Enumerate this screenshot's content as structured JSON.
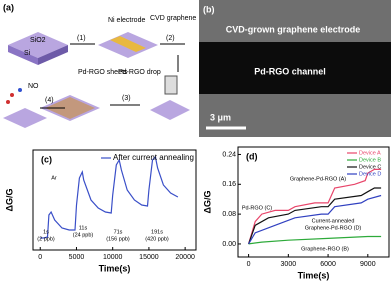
{
  "figure_a": {
    "label": "(a)",
    "substrate_top": "SiO2",
    "substrate_bottom": "Si",
    "step_1": "(1)",
    "ni": "Ni electrode",
    "step_2": "(2)",
    "cvd": "CVD graphene",
    "step_3": "(3)",
    "drop": "Pd-RGO drop",
    "step_4": "(4)",
    "sheets": "Pd-RGO sheets",
    "gas": "NO"
  },
  "figure_b": {
    "label": "(b)",
    "electrode": "CVD-grown graphene electrode",
    "channel": "Pd-RGO channel",
    "scale": "3 μm"
  },
  "chart_data": [
    {
      "type": "line",
      "label": "(c)",
      "y_label": "ΔG/G",
      "x_label": "Time(s)",
      "xlim": [
        -1000,
        21500
      ],
      "ylim": [
        0,
        1
      ],
      "xticks": [
        0,
        5000,
        10000,
        15000,
        20000
      ],
      "series": [
        {
          "name": "After current annealing",
          "color": "#3a4fc8",
          "x": [
            0,
            500,
            1000,
            1200,
            1500,
            2000,
            3000,
            4000,
            4800,
            5000,
            5400,
            5800,
            6000,
            7000,
            8000,
            9000,
            9800,
            10000,
            10500,
            10900,
            11200,
            12000,
            13000,
            14000,
            14800,
            15000,
            15500,
            15900,
            16200,
            17000,
            18000,
            19000
          ],
          "values": [
            0.12,
            0.12,
            0.13,
            0.35,
            0.38,
            0.3,
            0.22,
            0.2,
            0.2,
            0.45,
            0.72,
            0.78,
            0.7,
            0.5,
            0.42,
            0.38,
            0.37,
            0.55,
            0.85,
            0.9,
            0.8,
            0.6,
            0.5,
            0.45,
            0.44,
            0.6,
            0.9,
            0.93,
            0.82,
            0.65,
            0.57,
            0.53
          ]
        }
      ],
      "annotations": [
        [
          "Ar"
        ],
        [
          "1s",
          "(2 ppb)"
        ],
        [
          "11s",
          "(24 ppb)"
        ],
        [
          "71s",
          "(156 ppb)"
        ],
        [
          "191s",
          "(420 ppb)"
        ]
      ]
    },
    {
      "type": "line",
      "label": "(d)",
      "y_label": "ΔG/G",
      "x_label": "Time(s)",
      "xlim": [
        -800,
        10600
      ],
      "ylim": [
        -0.035,
        0.26
      ],
      "xticks": [
        0,
        3000,
        6000,
        9000
      ],
      "yticks": [
        {
          "value": 0,
          "label": "0.00"
        },
        {
          "value": 0.08,
          "label": "0.08"
        },
        {
          "value": 0.16,
          "label": "0.16"
        },
        {
          "value": 0.24,
          "label": "0.24"
        }
      ],
      "series": [
        {
          "name": "Device A",
          "color": "#e8456a",
          "x": [
            0,
            500,
            1000,
            2000,
            3000,
            3500,
            5000,
            6000,
            6500,
            8000,
            8800,
            9000,
            9500,
            10000
          ],
          "values": [
            0,
            0.06,
            0.08,
            0.09,
            0.09,
            0.1,
            0.11,
            0.11,
            0.15,
            0.16,
            0.17,
            0.19,
            0.2,
            0.2
          ]
        },
        {
          "name": "Device B",
          "color": "#2daa3a",
          "x": [
            0,
            1000,
            3000,
            6000,
            9000,
            10000
          ],
          "values": [
            0,
            0.005,
            0.01,
            0.015,
            0.02,
            0.02
          ]
        },
        {
          "name": "Device C",
          "color": "#111111",
          "x": [
            0,
            500,
            1500,
            3000,
            3500,
            5500,
            6000,
            6500,
            8500,
            9000,
            9500,
            10000
          ],
          "values": [
            0,
            0.05,
            0.07,
            0.08,
            0.09,
            0.1,
            0.1,
            0.12,
            0.13,
            0.14,
            0.15,
            0.15
          ]
        },
        {
          "name": "Device D",
          "color": "#3040c0",
          "x": [
            0,
            500,
            2000,
            3500,
            5500,
            6000,
            6500,
            8500,
            9000,
            10000
          ],
          "values": [
            0,
            0.03,
            0.05,
            0.07,
            0.08,
            0.08,
            0.1,
            0.11,
            0.12,
            0.13
          ]
        }
      ],
      "annotations": [
        [
          "Graphene-Pd-RGO (A)"
        ],
        [
          "Pd-RGO (C)"
        ],
        [
          "Current-annealed",
          "Graphene-Pd-RGO (D)"
        ],
        [
          "Graphene-RGO (B)"
        ]
      ]
    }
  ]
}
